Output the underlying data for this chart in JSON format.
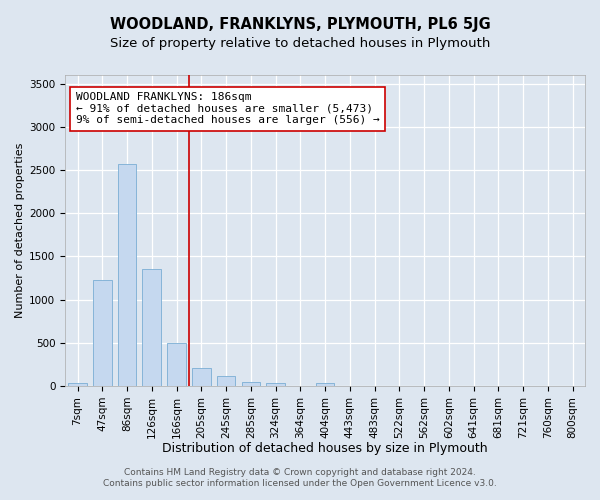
{
  "title": "WOODLAND, FRANKLYNS, PLYMOUTH, PL6 5JG",
  "subtitle": "Size of property relative to detached houses in Plymouth",
  "xlabel": "Distribution of detached houses by size in Plymouth",
  "ylabel": "Number of detached properties",
  "categories": [
    "7sqm",
    "47sqm",
    "86sqm",
    "126sqm",
    "166sqm",
    "205sqm",
    "245sqm",
    "285sqm",
    "324sqm",
    "364sqm",
    "404sqm",
    "443sqm",
    "483sqm",
    "522sqm",
    "562sqm",
    "602sqm",
    "641sqm",
    "681sqm",
    "721sqm",
    "760sqm",
    "800sqm"
  ],
  "values": [
    40,
    1230,
    2570,
    1350,
    500,
    205,
    120,
    50,
    40,
    0,
    30,
    0,
    0,
    0,
    0,
    0,
    0,
    0,
    0,
    0,
    0
  ],
  "bar_color": "#c5d8ef",
  "bar_edge_color": "#7aadd4",
  "vline_color": "#cc0000",
  "annotation_text": "WOODLAND FRANKLYNS: 186sqm\n← 91% of detached houses are smaller (5,473)\n9% of semi-detached houses are larger (556) →",
  "annotation_box_color": "#ffffff",
  "annotation_box_edge_color": "#cc0000",
  "ylim": [
    0,
    3600
  ],
  "yticks": [
    0,
    500,
    1000,
    1500,
    2000,
    2500,
    3000,
    3500
  ],
  "background_color": "#dde6f0",
  "plot_background_color": "#dde6f0",
  "grid_color": "#ffffff",
  "footer_line1": "Contains HM Land Registry data © Crown copyright and database right 2024.",
  "footer_line2": "Contains public sector information licensed under the Open Government Licence v3.0.",
  "title_fontsize": 10.5,
  "subtitle_fontsize": 9.5,
  "xlabel_fontsize": 9,
  "ylabel_fontsize": 8,
  "tick_fontsize": 7.5,
  "footer_fontsize": 6.5,
  "annotation_fontsize": 8
}
